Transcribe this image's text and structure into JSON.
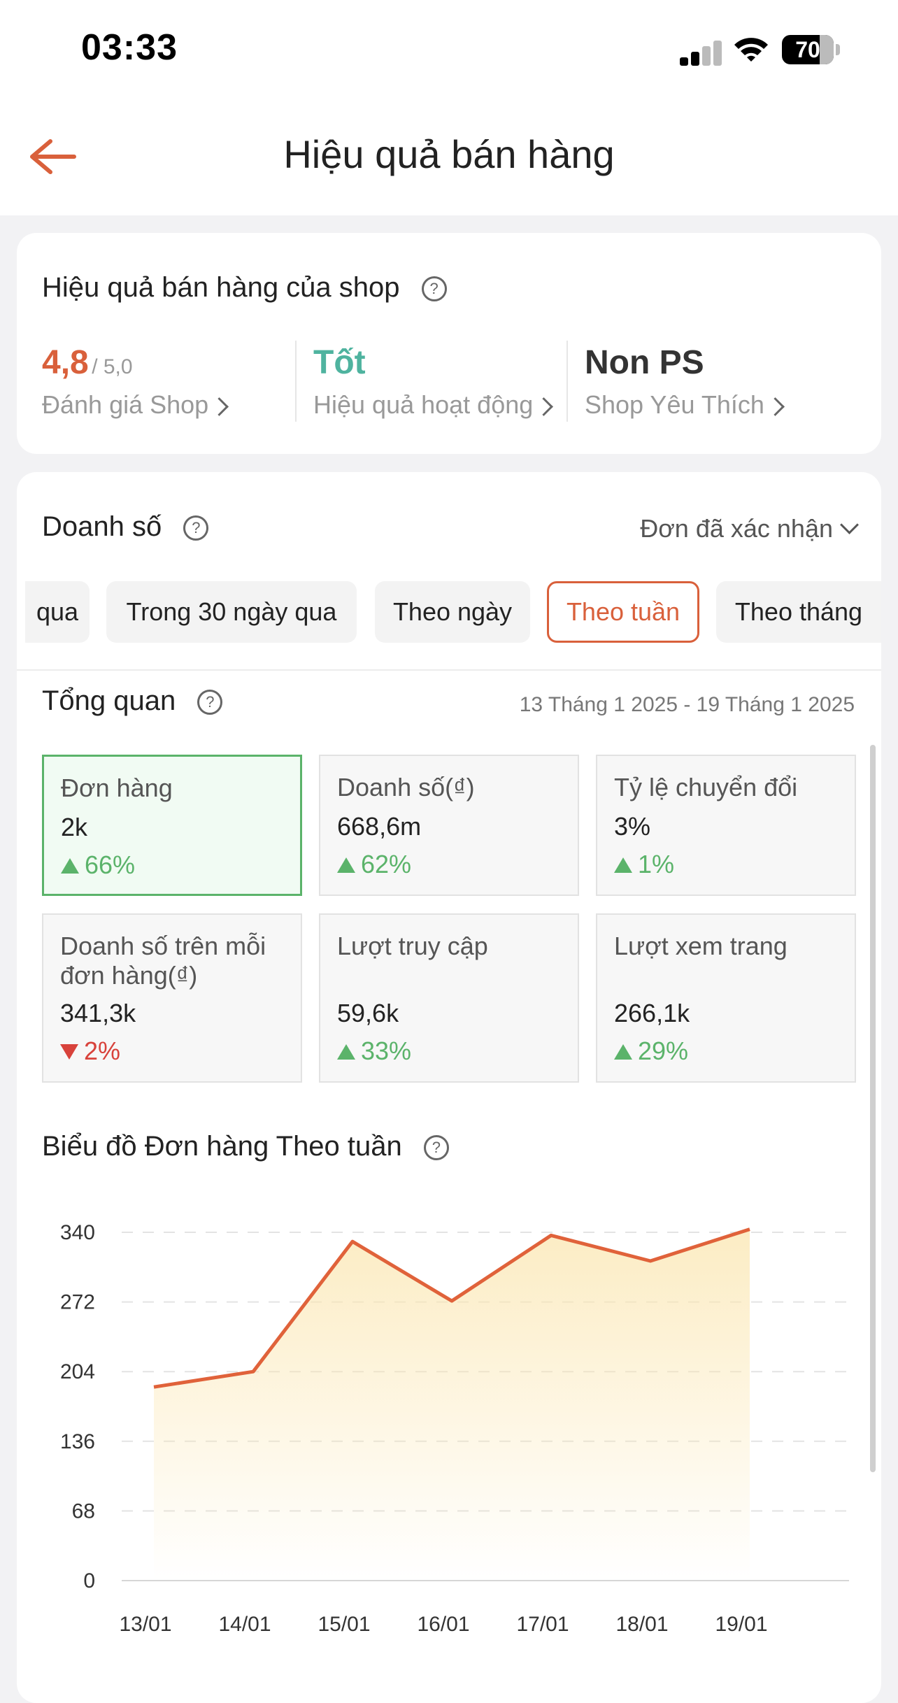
{
  "status_bar": {
    "time": "03:33",
    "battery": "70"
  },
  "header": {
    "title": "Hiệu quả bán hàng"
  },
  "shop_performance": {
    "title": "Hiệu quả bán hàng của shop",
    "rating": {
      "value": "4,8",
      "max": "/ 5,0",
      "label": "Đánh giá Shop"
    },
    "activity": {
      "value": "Tốt",
      "label": "Hiệu quả hoạt động"
    },
    "favorite": {
      "value": "Non PS",
      "label": "Shop Yêu Thích"
    }
  },
  "sales": {
    "title": "Doanh số",
    "filter": "Đơn đã xác nhận",
    "chips": [
      {
        "label": "qua",
        "active": false
      },
      {
        "label": "Trong 30 ngày qua",
        "active": false
      },
      {
        "label": "Theo ngày",
        "active": false
      },
      {
        "label": "Theo tuần",
        "active": true
      },
      {
        "label": "Theo tháng",
        "active": false
      }
    ]
  },
  "overview": {
    "title": "Tổng quan",
    "date_range": "13 Tháng 1 2025 - 19 Tháng 1 2025",
    "kpis": [
      {
        "label": "Đơn hàng",
        "value": "2k",
        "change": "66%",
        "direction": "up",
        "selected": true
      },
      {
        "label": "Doanh số(₫)",
        "value": "668,6m",
        "change": "62%",
        "direction": "up",
        "selected": false
      },
      {
        "label": "Tỷ lệ chuyển đổi",
        "value": "3%",
        "change": "1%",
        "direction": "up",
        "selected": false
      },
      {
        "label": "Doanh số trên mỗi đơn hàng(₫)",
        "value": "341,3k",
        "change": "2%",
        "direction": "down",
        "selected": false
      },
      {
        "label": "Lượt truy cập",
        "value": "59,6k",
        "change": "33%",
        "direction": "up",
        "selected": false
      },
      {
        "label": "Lượt xem trang",
        "value": "266,1k",
        "change": "29%",
        "direction": "up",
        "selected": false
      }
    ]
  },
  "chart_section": {
    "title": "Biểu đồ Đơn hàng Theo tuần"
  },
  "colors": {
    "accent": "#d9603b",
    "good": "#5bb36a",
    "bad": "#d8423b",
    "line": "#e0623a",
    "fill": "#fbe6b0"
  },
  "chart_data": {
    "type": "area",
    "title": "Biểu đồ Đơn hàng Theo tuần",
    "x": [
      "13/01",
      "14/01",
      "15/01",
      "16/01",
      "17/01",
      "18/01",
      "19/01"
    ],
    "values": [
      189,
      204,
      331,
      273,
      337,
      312,
      343
    ],
    "y_ticks": [
      "0",
      "68",
      "136",
      "204",
      "272",
      "340"
    ],
    "ylim": [
      0,
      340
    ],
    "grid": true
  }
}
